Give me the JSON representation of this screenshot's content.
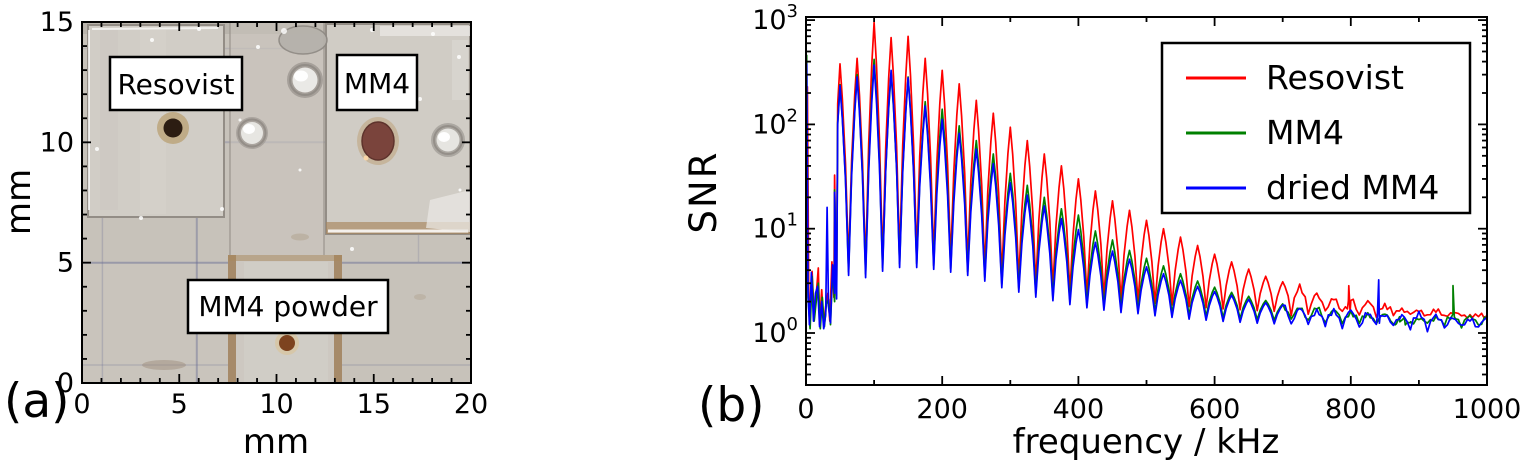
{
  "figure": {
    "background": "#ffffff",
    "panel_a": {
      "panel_label": "(a)",
      "xlabel": "mm",
      "ylabel": "mm",
      "x_tick_values": [
        0,
        5,
        10,
        15,
        20
      ],
      "y_tick_values": [
        0,
        5,
        10,
        15
      ],
      "x_range_mm": [
        0,
        20
      ],
      "y_range_mm": [
        0,
        15
      ],
      "annotations": [
        {
          "label": "Resovist"
        },
        {
          "label": "MM4"
        },
        {
          "label": "MM4 powder"
        }
      ]
    },
    "panel_b": {
      "panel_label": "(b)"
    }
  },
  "chart_data": {
    "type": "line",
    "title": "",
    "xlabel": "frequency / kHz",
    "ylabel": "SNR",
    "x_scale": "linear",
    "y_scale": "log",
    "xlim": [
      0,
      1000
    ],
    "ylim": [
      0.32,
      1070
    ],
    "x_tick_values": [
      0,
      200,
      400,
      600,
      800,
      1000
    ],
    "x_minor_tick_values": [
      100,
      300,
      500,
      700,
      900
    ],
    "y_tick_exponents": [
      0,
      1,
      2,
      3
    ],
    "grid": false,
    "legend": {
      "position": "upper right",
      "entries": [
        "Resovist",
        "MM4",
        "dried MM4"
      ]
    },
    "harmonic_spacing_khz": 25,
    "peak_freqs_khz": [
      50,
      75,
      100,
      125,
      150,
      175,
      200,
      225,
      250,
      275,
      300,
      325,
      350,
      375,
      400,
      425,
      450,
      475,
      500,
      525,
      550,
      575,
      600,
      625,
      650,
      675,
      700,
      725,
      750,
      775,
      800,
      825,
      850,
      875,
      900,
      925,
      950,
      975,
      1000
    ],
    "valley_freqs_khz": [
      45,
      62.5,
      87.5,
      112.5,
      137.5,
      162.5,
      187.5,
      212.5,
      237.5,
      262.5,
      287.5,
      312.5,
      337.5,
      362.5,
      387.5,
      412.5,
      437.5,
      462.5,
      487.5,
      512.5,
      537.5,
      562.5,
      587.5,
      612.5,
      637.5,
      662.5,
      687.5,
      712.5,
      737.5,
      762.5,
      787.5,
      812.5,
      837.5,
      862.5,
      887.5,
      912.5,
      937.5,
      962.5,
      987.5
    ],
    "valley_snr": [
      2.5,
      4.2,
      4.0,
      4.6,
      5.0,
      5.0,
      4.8,
      4.5,
      4.2,
      3.7,
      3.2,
      2.9,
      2.6,
      2.4,
      2.2,
      2.05,
      1.95,
      1.85,
      1.8,
      1.72,
      1.66,
      1.6,
      1.56,
      1.52,
      1.49,
      1.46,
      1.44,
      1.42,
      1.4,
      1.38,
      1.36,
      1.35,
      1.34,
      1.33,
      1.32,
      1.31,
      1.31,
      1.3,
      1.3
    ],
    "series": [
      {
        "name": "Resovist",
        "color": "#ff0000",
        "valley_scale": 1.12,
        "peak_snr": [
          380,
          430,
          950,
          680,
          700,
          430,
          330,
          245,
          170,
          128,
          94,
          70,
          52,
          40,
          30,
          23,
          18.5,
          15,
          12,
          10,
          8.3,
          6.9,
          5.7,
          4.8,
          4.1,
          3.5,
          3.1,
          2.75,
          2.45,
          2.25,
          2.1,
          1.95,
          1.85,
          1.75,
          1.65,
          1.6,
          1.55,
          1.5,
          1.45
        ],
        "low_freq_points": [
          [
            0,
            2.0
          ],
          [
            2,
            230
          ],
          [
            4,
            2.5
          ],
          [
            6,
            1.3
          ],
          [
            9,
            3.9
          ],
          [
            12,
            1.4
          ],
          [
            15,
            2.3
          ],
          [
            18,
            4.2
          ],
          [
            20,
            1.2
          ],
          [
            23,
            2.6
          ],
          [
            26,
            1.2
          ],
          [
            29,
            1.8
          ],
          [
            32,
            2.4
          ],
          [
            35,
            1.3
          ],
          [
            38,
            4.8
          ],
          [
            41,
            2.2
          ],
          [
            44,
            3.0
          ]
        ],
        "extra_points": [
          [
            795,
            1.6
          ],
          [
            797,
            2.9
          ],
          [
            799,
            1.6
          ]
        ]
      },
      {
        "name": "MM4",
        "color": "#008000",
        "valley_scale": 0.92,
        "peak_snr": [
          240,
          300,
          420,
          310,
          285,
          165,
          140,
          97,
          70,
          52,
          34,
          26,
          20,
          15.5,
          13.5,
          9.5,
          7.8,
          6.2,
          5.2,
          4.4,
          3.7,
          3.15,
          2.75,
          2.45,
          2.25,
          2.05,
          1.9,
          1.8,
          1.72,
          1.65,
          1.6,
          1.55,
          1.5,
          1.35,
          1.4,
          1.45,
          1.45,
          1.4,
          1.4
        ],
        "low_freq_points": [
          [
            0,
            1.5
          ],
          [
            1,
            460
          ],
          [
            3,
            2.2
          ],
          [
            6,
            1.1
          ],
          [
            9,
            3.5
          ],
          [
            12,
            1.3
          ],
          [
            15,
            2.0
          ],
          [
            18,
            3.0
          ],
          [
            21,
            1.1
          ],
          [
            24,
            2.2
          ],
          [
            27,
            1.15
          ],
          [
            30,
            1.9
          ],
          [
            33,
            2.1
          ],
          [
            36,
            1.2
          ],
          [
            39,
            4.0
          ],
          [
            42,
            2.0
          ]
        ],
        "extra_points": [
          [
            857,
            1.3
          ],
          [
            865,
            1.17
          ],
          [
            872,
            1.2
          ],
          [
            880,
            1.16
          ],
          [
            888,
            1.28
          ],
          [
            948,
            1.45
          ],
          [
            950,
            2.7
          ],
          [
            952,
            1.45
          ]
        ]
      },
      {
        "name": "dried MM4",
        "color": "#0000ff",
        "valley_scale": 0.85,
        "peak_snr": [
          235,
          285,
          370,
          330,
          280,
          150,
          112,
          82,
          58,
          42,
          27.5,
          21,
          16.5,
          12.5,
          9.8,
          7.4,
          6.1,
          5.1,
          4.3,
          3.7,
          3.2,
          2.8,
          2.5,
          2.3,
          2.1,
          1.95,
          1.85,
          1.75,
          1.7,
          1.65,
          1.6,
          1.55,
          1.55,
          1.5,
          1.5,
          1.45,
          1.45,
          1.4,
          1.4
        ],
        "low_freq_points": [
          [
            0,
            1.8
          ],
          [
            1,
            380
          ],
          [
            3,
            2.5
          ],
          [
            5,
            1.2
          ],
          [
            8,
            3.8
          ],
          [
            11,
            1.3
          ],
          [
            14,
            2.4
          ],
          [
            17,
            2.8
          ],
          [
            20,
            1.15
          ],
          [
            23,
            2.0
          ],
          [
            26,
            1.1
          ],
          [
            29,
            1.5
          ],
          [
            31,
            16
          ],
          [
            33,
            1.8
          ],
          [
            36,
            1.25
          ],
          [
            39,
            4.5
          ],
          [
            42,
            2.4
          ]
        ],
        "extra_points": [
          [
            839,
            1.5
          ],
          [
            841,
            3.3
          ],
          [
            843,
            1.5
          ]
        ]
      }
    ]
  }
}
